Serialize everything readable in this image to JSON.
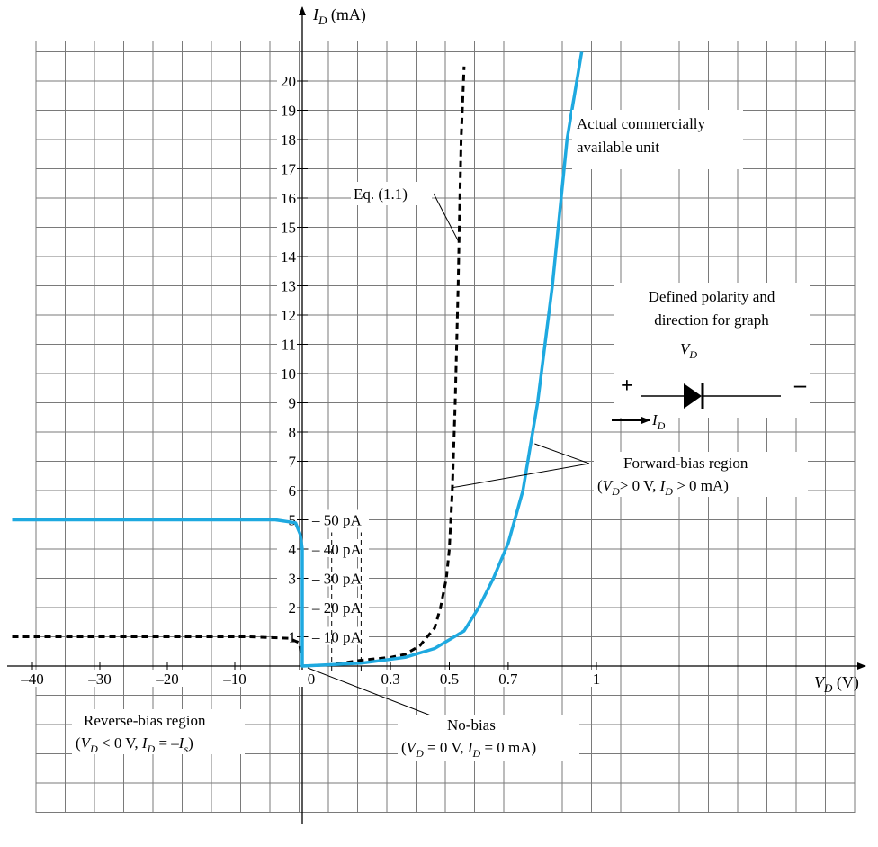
{
  "chart_data": {
    "type": "line",
    "y_axis_label": {
      "var": "I",
      "sub": "D",
      "unit": " (mA)"
    },
    "x_axis_label": {
      "var": "V",
      "sub": "D",
      "unit": " (V)"
    },
    "y_ticks": [
      "1",
      "2",
      "3",
      "4",
      "5",
      "6",
      "7",
      "8",
      "9",
      "10",
      "11",
      "12",
      "13",
      "14",
      "15",
      "16",
      "17",
      "18",
      "19",
      "20"
    ],
    "x_ticks_reverse": [
      "–40",
      "–30",
      "–20",
      "–10"
    ],
    "x_ticks_forward": [
      "0",
      "0.3",
      "0.5",
      "0.7",
      "1"
    ],
    "pa_ticks": [
      "– 10 pA",
      "– 20 pA",
      "– 30 pA",
      "– 40 pA",
      "– 50 pA"
    ],
    "series": [
      {
        "name": "Eq. (1.1)",
        "style": "dashed",
        "color": "#000000",
        "forward": [
          [
            0,
            0
          ],
          [
            0.1,
            0.05
          ],
          [
            0.2,
            0.2
          ],
          [
            0.3,
            0.3
          ],
          [
            0.35,
            0.4
          ],
          [
            0.4,
            0.7
          ],
          [
            0.45,
            1.3
          ],
          [
            0.47,
            2
          ],
          [
            0.49,
            3
          ],
          [
            0.5,
            4
          ],
          [
            0.51,
            6
          ],
          [
            0.52,
            9
          ],
          [
            0.53,
            13
          ],
          [
            0.535,
            15.5
          ],
          [
            0.54,
            18
          ],
          [
            0.55,
            20.5
          ]
        ],
        "reverse_pA": [
          [
            -43,
            -10
          ],
          [
            -8,
            -10
          ],
          [
            -2,
            -9.5
          ],
          [
            -0.5,
            -8
          ],
          [
            0,
            -3
          ],
          [
            0,
            0
          ]
        ]
      },
      {
        "name": "Actual commercially available unit",
        "style": "solid",
        "color": "#1ea9e0",
        "forward": [
          [
            0,
            0
          ],
          [
            0.2,
            0.1
          ],
          [
            0.35,
            0.3
          ],
          [
            0.45,
            0.6
          ],
          [
            0.55,
            1.2
          ],
          [
            0.6,
            2
          ],
          [
            0.65,
            3
          ],
          [
            0.7,
            4.2
          ],
          [
            0.75,
            6
          ],
          [
            0.8,
            9
          ],
          [
            0.85,
            13
          ],
          [
            0.9,
            18
          ],
          [
            0.95,
            21
          ]
        ],
        "reverse_pA": [
          [
            -43,
            -50
          ],
          [
            -4,
            -50
          ],
          [
            -1,
            -49
          ],
          [
            -0.3,
            -45
          ],
          [
            0,
            -40
          ],
          [
            0,
            0
          ]
        ]
      }
    ],
    "annotations": {
      "eq_label": "Eq. (1.1)",
      "actual_line1": "Actual commercially",
      "actual_line2": "available unit",
      "defined_line1": "Defined polarity and",
      "defined_line2": "direction for graph",
      "plus": "+",
      "minus": "–",
      "forward_title": "Forward-bias region",
      "forward_cond_a": "> 0 V,  ",
      "forward_cond_b": " > 0  mA)",
      "reverse_title": "Reverse-bias region",
      "reverse_cond_a": " < 0 V, ",
      "reverse_cond_b": " = –",
      "reverse_cond_c": ")",
      "nobias_title": "No-bias",
      "nobias_cond_a": " = 0 V, ",
      "nobias_cond_b": " = 0 mA)"
    }
  }
}
